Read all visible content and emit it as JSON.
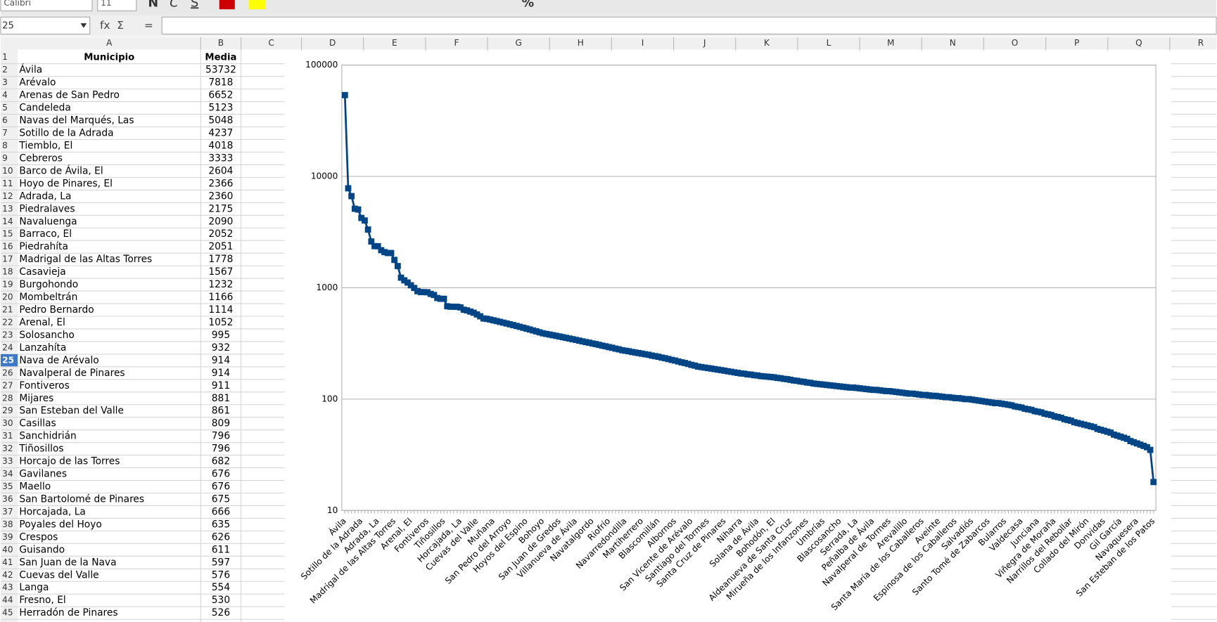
{
  "toolbar": {
    "font_name": "Calibri",
    "font_size": "11",
    "buttons": [
      "N",
      "C",
      "S"
    ],
    "percent": "%"
  },
  "formula_bar": {
    "cell_ref": "25",
    "function_icons": [
      "fx",
      "Σ",
      "="
    ]
  },
  "column_headers": [
    "A",
    "B",
    "C",
    "D",
    "E",
    "F",
    "G",
    "H",
    "I",
    "J",
    "K",
    "L",
    "M",
    "N",
    "O",
    "P",
    "Q",
    "R"
  ],
  "row_headers": [
    1,
    2,
    3,
    4,
    5,
    6,
    7,
    8,
    9,
    10,
    11,
    12,
    13,
    14,
    15,
    16,
    17,
    18,
    19,
    20,
    21,
    22,
    23,
    24,
    25,
    26,
    27,
    28,
    29,
    30,
    31,
    32,
    33,
    34,
    35,
    36,
    37,
    38,
    39,
    40,
    41,
    42,
    43,
    44,
    45
  ],
  "table": {
    "header": [
      "Municipio",
      "Media"
    ],
    "rows": [
      [
        "Ávila",
        53732
      ],
      [
        "Arévalo",
        7818
      ],
      [
        "Arenas de San Pedro",
        6652
      ],
      [
        "Candeleda",
        5123
      ],
      [
        "Navas del Marqués, Las",
        5048
      ],
      [
        "Sotillo de la Adrada",
        4237
      ],
      [
        "Tiemblo, El",
        4018
      ],
      [
        "Cebreros",
        3333
      ],
      [
        "Barco de Ávila, El",
        2604
      ],
      [
        "Hoyo de Pinares, El",
        2366
      ],
      [
        "Adrada, La",
        2360
      ],
      [
        "Piedralaves",
        2175
      ],
      [
        "Navaluenga",
        2090
      ],
      [
        "Barraco, El",
        2052
      ],
      [
        "Piedrahíta",
        2051
      ],
      [
        "Madrigal de las Altas Torres",
        1778
      ],
      [
        "Casavieja",
        1567
      ],
      [
        "Burgohondo",
        1232
      ],
      [
        "Mombeltrán",
        1166
      ],
      [
        "Pedro Bernardo",
        1114
      ],
      [
        "Arenal, El",
        1052
      ],
      [
        "Solosancho",
        995
      ],
      [
        "Lanzahíta",
        932
      ],
      [
        "Nava de Arévalo",
        914
      ],
      [
        "Navalperal de Pinares",
        914
      ],
      [
        "Fontiveros",
        911
      ],
      [
        "Mijares",
        881
      ],
      [
        "San Esteban del Valle",
        861
      ],
      [
        "Casillas",
        809
      ],
      [
        "Sanchidrián",
        796
      ],
      [
        "Tiñosillos",
        796
      ],
      [
        "Horcajo de las Torres",
        682
      ],
      [
        "Gavilanes",
        676
      ],
      [
        "Maello",
        676
      ],
      [
        "San Bartolomé de Pinares",
        675
      ],
      [
        "Horcajada, La",
        666
      ],
      [
        "Poyales del Hoyo",
        635
      ],
      [
        "Crespos",
        626
      ],
      [
        "Guisando",
        611
      ],
      [
        "San Juan de la Nava",
        597
      ],
      [
        "Cuevas del Valle",
        576
      ],
      [
        "Langa",
        554
      ],
      [
        "Fresno, El",
        530
      ],
      [
        "Herradón de Pinares",
        526
      ]
    ]
  },
  "chart_data": {
    "type": "line",
    "color": "#004586",
    "log_scale": true,
    "grid": true,
    "ylim": [
      10,
      100000
    ],
    "yticks": [
      10,
      100,
      1000,
      10000,
      100000
    ],
    "categories": [
      "Ávila",
      null,
      null,
      null,
      null,
      "Sotillo de la Adrada",
      null,
      null,
      null,
      null,
      "Adrada, La",
      null,
      null,
      null,
      null,
      "Madrigal de las Altas Torres",
      null,
      null,
      null,
      null,
      "Arenal, El",
      null,
      null,
      null,
      null,
      "Fontiveros",
      null,
      null,
      null,
      null,
      "Tiñosillos",
      null,
      null,
      null,
      null,
      "Horcajada, La",
      null,
      null,
      null,
      null,
      "Cuevas del Valle",
      null,
      null,
      null,
      null,
      "Muñana",
      null,
      null,
      null,
      null,
      "San Pedro del Arroyo",
      null,
      null,
      null,
      null,
      "Hoyos del Espino",
      null,
      null,
      null,
      null,
      "Bohoyo",
      null,
      null,
      null,
      null,
      "San Juan de Gredos",
      null,
      null,
      null,
      null,
      "Villanueva de Ávila",
      null,
      null,
      null,
      null,
      "Navatalgordo",
      null,
      null,
      null,
      null,
      "Riofrío",
      null,
      null,
      null,
      null,
      "Navarredondilla",
      null,
      null,
      null,
      null,
      "Martiherrero",
      null,
      null,
      null,
      null,
      "Blascomillán",
      null,
      null,
      null,
      null,
      "Albornos",
      null,
      null,
      null,
      null,
      "San Vicente de Arévalo",
      null,
      null,
      null,
      null,
      "Santiago del Tormes",
      null,
      null,
      null,
      null,
      "Santa Cruz de Pinares",
      null,
      null,
      null,
      null,
      "Niharra",
      null,
      null,
      null,
      null,
      "Solana de Ávila",
      null,
      null,
      null,
      null,
      "Bohodón, El",
      null,
      null,
      null,
      null,
      "Aldeanueva de Santa Cruz",
      null,
      null,
      null,
      null,
      "Mirueña de los Infanzones",
      null,
      null,
      null,
      null,
      "Umbrías",
      null,
      null,
      null,
      null,
      "Blascosancho",
      null,
      null,
      null,
      null,
      "Serrada, La",
      null,
      null,
      null,
      null,
      "Peñalba de Ávila",
      null,
      null,
      null,
      null,
      "Navalperal de Tormes",
      null,
      null,
      null,
      null,
      "Arevalillo",
      null,
      null,
      null,
      null,
      "Santa María de los Caballeros",
      null,
      null,
      null,
      null,
      "Aveinte",
      null,
      null,
      null,
      null,
      "Espinosa de los Caballeros",
      null,
      null,
      null,
      null,
      "Salvadiós",
      null,
      null,
      null,
      null,
      "Santo Tomé de Zabarcos",
      null,
      null,
      null,
      null,
      "Bularros",
      null,
      null,
      null,
      null,
      "Valdecasa",
      null,
      null,
      null,
      null,
      "Junciana",
      null,
      null,
      null,
      null,
      "Viñegra de Moraña",
      null,
      null,
      null,
      null,
      "Narrillos del Rebollar",
      null,
      null,
      null,
      null,
      "Collado del Mirón",
      null,
      null,
      null,
      null,
      "Donvidas",
      null,
      null,
      null,
      null,
      "Gil García",
      null,
      null,
      null,
      null,
      "Navaquesera",
      null,
      null,
      null,
      null,
      "San Esteban de los Patos"
    ],
    "values": [
      53732,
      7818,
      6652,
      5123,
      5048,
      4237,
      4018,
      3333,
      2604,
      2366,
      2360,
      2175,
      2090,
      2052,
      2051,
      1778,
      1567,
      1232,
      1166,
      1114,
      1052,
      995,
      932,
      914,
      914,
      911,
      881,
      861,
      809,
      796,
      796,
      682,
      676,
      676,
      675,
      666,
      635,
      626,
      611,
      597,
      576,
      554,
      530,
      526,
      518,
      510,
      502,
      494,
      486,
      478,
      470,
      462,
      454,
      446,
      438,
      430,
      422,
      414,
      406,
      398,
      390,
      385,
      380,
      375,
      370,
      365,
      360,
      355,
      350,
      345,
      340,
      335,
      330,
      325,
      321,
      316,
      312,
      307,
      302,
      298,
      293,
      289,
      284,
      280,
      275,
      272,
      269,
      265,
      262,
      259,
      256,
      253,
      250,
      246,
      243,
      240,
      236,
      233,
      229,
      225,
      222,
      218,
      214,
      211,
      207,
      203,
      200,
      196,
      194,
      192,
      190,
      188,
      186,
      184,
      182,
      180,
      178,
      176,
      174,
      172,
      170,
      169,
      167,
      166,
      164,
      163,
      161,
      160,
      159,
      158,
      157,
      155,
      154,
      152,
      151,
      149,
      147,
      146,
      144,
      143,
      141,
      140,
      138,
      137,
      136,
      135,
      134,
      133,
      132,
      131,
      130,
      129,
      128,
      127,
      127,
      126,
      125,
      124,
      123,
      122,
      121,
      121,
      120,
      119,
      118,
      118,
      117,
      116,
      115,
      114,
      113,
      112,
      112,
      111,
      110,
      109,
      109,
      108,
      107,
      107,
      106,
      105,
      104,
      104,
      103,
      102,
      102,
      101,
      100,
      100,
      99,
      98,
      97,
      96,
      95,
      94,
      93,
      92,
      92,
      91,
      90,
      89,
      88,
      86,
      85,
      84,
      82,
      81,
      80,
      78,
      77,
      76,
      74,
      73,
      72,
      70,
      69,
      68,
      66,
      65,
      64,
      62,
      61,
      60,
      59,
      58,
      57,
      56,
      54,
      53,
      52,
      51,
      50,
      48,
      47,
      46,
      45,
      44,
      42,
      41,
      40,
      39,
      38,
      37,
      35,
      18
    ]
  }
}
